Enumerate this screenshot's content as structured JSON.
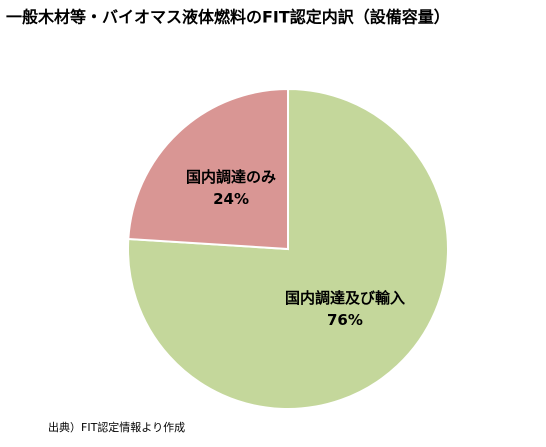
{
  "chart_data": {
    "type": "pie",
    "title": "一般木材等・バイオマス液体燃料のFIT認定内訳（設備容量）",
    "categories": [
      "国内調達及び輸入",
      "国内調達のみ"
    ],
    "values": [
      76,
      24
    ],
    "value_labels": [
      "76%",
      "24%"
    ],
    "colors": [
      "#c4d79b",
      "#d99694"
    ],
    "source": "出典）FIT認定情報より作成"
  }
}
